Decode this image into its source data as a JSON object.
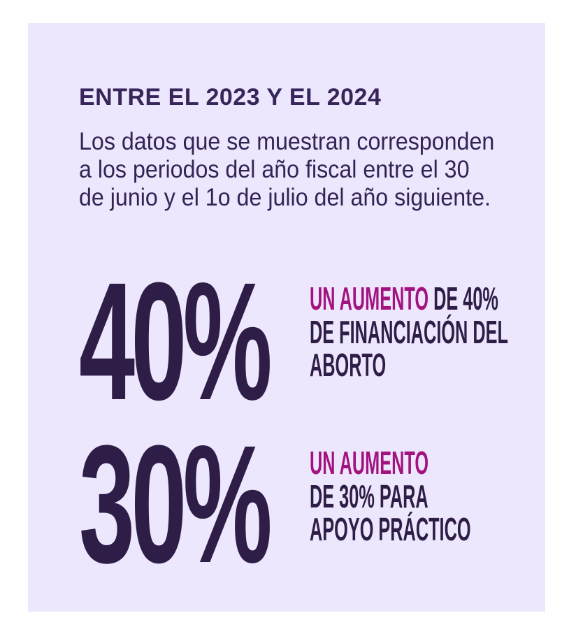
{
  "colors": {
    "page-bg": "#FFFFFF",
    "card-bg": "#ECE7FC",
    "heading-ink": "#38265A",
    "body-ink": "#342355",
    "stat-ink": "#2E1D46",
    "accent": "#A31380"
  },
  "card": {
    "heading": "ENTRE EL 2023 Y EL 2024",
    "intro_lines": [
      "Los datos que se muestran corresponden",
      "a los periodos del año fiscal entre el 30",
      "de junio y el 1o de julio del año siguiente."
    ],
    "stat1": {
      "value": "40%",
      "line1_accent": "UN AUMENTO",
      "line1_rest": " DE 40%",
      "line2": "DE FINANCIACIÓN DEL",
      "line3": "ABORTO"
    },
    "stat2": {
      "value": "30%",
      "line1_accent": "UN AUMENTO",
      "line1_rest": "",
      "line2": "DE 30% PARA",
      "line3": "APOYO PRÁCTICO"
    }
  },
  "chart_data": {
    "type": "table",
    "title": "ENTRE EL 2023 Y EL 2024",
    "note": "Los datos que se muestran corresponden a los periodos del año fiscal entre el 30 de junio y el 1o de julio del año siguiente.",
    "categories": [
      "Financiación del aborto",
      "Apoyo práctico"
    ],
    "values": [
      40,
      30
    ],
    "unit": "% de aumento"
  }
}
